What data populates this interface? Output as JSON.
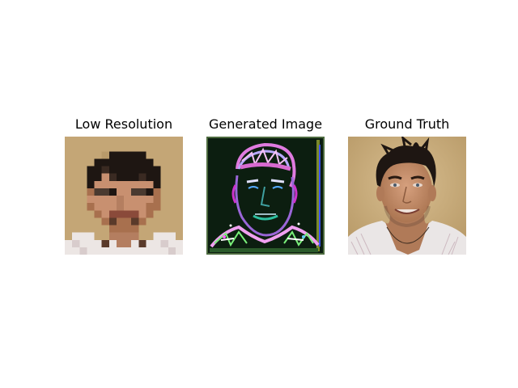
{
  "panels": [
    {
      "title": "Low Resolution",
      "content": "pixelated portrait of a smiling man with dark spiky hair on a tan background"
    },
    {
      "title": "Generated Image",
      "content": "noisy colorful edge-like reconstruction on a dark green background"
    },
    {
      "title": "Ground Truth",
      "content": "sharp portrait of a smiling man with dark spiky hair on a tan background"
    }
  ]
}
